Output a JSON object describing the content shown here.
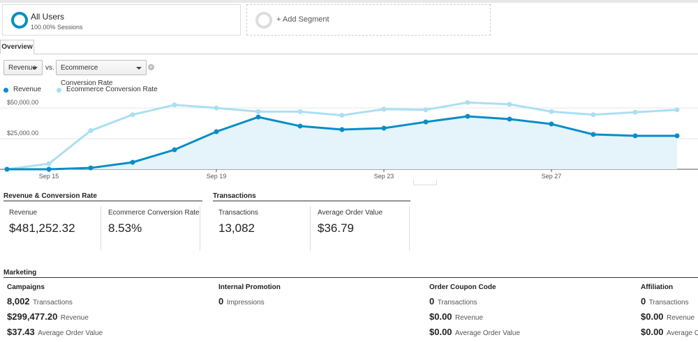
{
  "segments": [
    {
      "name": "All Users",
      "detail": "100.00% Sessions"
    },
    {
      "name": "+ Add Segment"
    }
  ],
  "tab": "Overview",
  "controls": {
    "metric1": "Revenue",
    "vs": "vs.",
    "metric2": "Ecommerce Conversion Rate"
  },
  "chart_data": {
    "type": "line",
    "categories": [
      null,
      "Sep 15",
      null,
      null,
      null,
      "Sep 19",
      null,
      null,
      null,
      "Sep 23",
      null,
      null,
      null,
      "Sep 27",
      null,
      null,
      null
    ],
    "series": [
      {
        "name": "Revenue",
        "color": "#058dc7",
        "values": [
          0,
          0,
          1100,
          5700,
          15900,
          30700,
          42600,
          35200,
          32400,
          33500,
          38600,
          43200,
          40900,
          36900,
          28400,
          27300,
          27300
        ]
      },
      {
        "name": "Ecommerce Conversion Rate",
        "color": "#aadff3",
        "axis": "y2",
        "values": [
          0,
          0.9,
          6.3,
          8.9,
          10.5,
          10.0,
          9.4,
          9.4,
          8.8,
          9.8,
          9.7,
          10.9,
          10.6,
          9.4,
          8.9,
          9.3,
          9.7
        ]
      }
    ],
    "ylim": [
      0,
      50000
    ],
    "yticks": [
      {
        "value": 25000,
        "label": "$25,000.00"
      },
      {
        "value": 50000,
        "label": "$50,000.00"
      }
    ],
    "y2lim": [
      0,
      10
    ],
    "grid": true,
    "area": true,
    "legend": "top-left"
  },
  "summary": [
    {
      "title": "Revenue & Conversion Rate",
      "metrics": [
        {
          "label": "Revenue",
          "value": "$481,252.32"
        },
        {
          "label": "Ecommerce Conversion Rate",
          "value": "8.53%"
        }
      ]
    },
    {
      "title": "Transactions",
      "metrics": [
        {
          "label": "Transactions",
          "value": "13,082"
        },
        {
          "label": "Average Order Value",
          "value": "$36.79"
        }
      ]
    }
  ],
  "marketing": {
    "title": "Marketing",
    "columns": [
      {
        "name": "Campaigns",
        "rows": [
          {
            "value": "8,002",
            "label": "Transactions"
          },
          {
            "value": "$299,477.20",
            "label": "Revenue"
          },
          {
            "value": "$37.43",
            "label": "Average Order Value"
          }
        ]
      },
      {
        "name": "Internal Promotion",
        "rows": [
          {
            "value": "0",
            "label": "Impressions"
          }
        ]
      },
      {
        "name": "Order Coupon Code",
        "rows": [
          {
            "value": "0",
            "label": "Transactions"
          },
          {
            "value": "$0.00",
            "label": "Revenue"
          },
          {
            "value": "$0.00",
            "label": "Average Order Value"
          }
        ]
      },
      {
        "name": "Affiliation",
        "rows": [
          {
            "value": "0",
            "label": "Transactions"
          },
          {
            "value": "$0.00",
            "label": "Revenue"
          },
          {
            "value": "$0.00",
            "label": "Average Order Value"
          }
        ]
      }
    ]
  }
}
